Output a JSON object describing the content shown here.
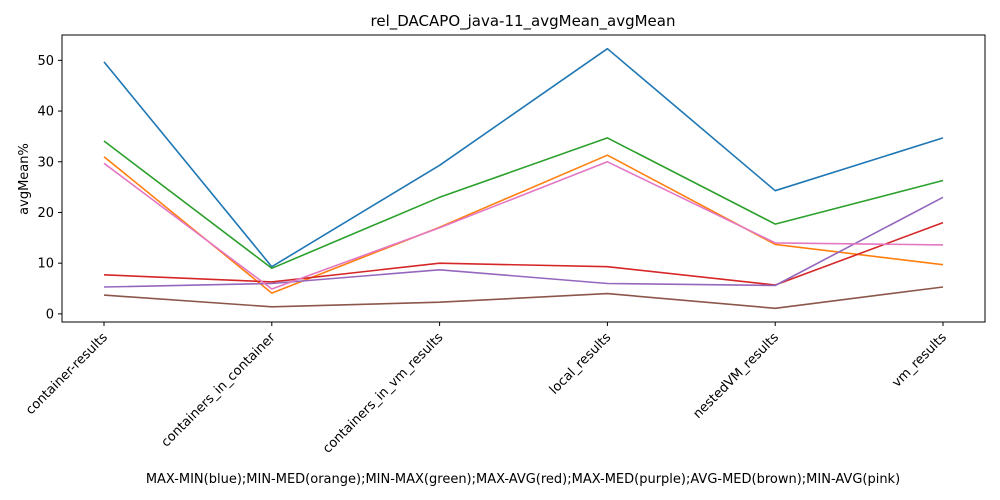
{
  "chart_data": {
    "type": "line",
    "title": "rel_DACAPO_java-11_avgMean_avgMean",
    "xlabel": "MAX-MIN(blue);MIN-MED(orange);MIN-MAX(green);MAX-AVG(red);MAX-MED(purple);AVG-MED(brown);MIN-AVG(pink)",
    "ylabel": "avgMean%",
    "categories": [
      "container-results",
      "containers_in_container",
      "containers_in_vm_results",
      "local_results",
      "nestedVM_results",
      "vm_results"
    ],
    "ylim": [
      -1.6,
      55
    ],
    "yticks": [
      0,
      10,
      20,
      30,
      40,
      50
    ],
    "grid": false,
    "legend": "none",
    "series": [
      {
        "color": "#1f77b4",
        "values": [
          49.7,
          9.3,
          29.3,
          52.3,
          24.3,
          34.7
        ]
      },
      {
        "color": "#ff7f0e",
        "values": [
          31.0,
          4.1,
          17.1,
          31.3,
          13.7,
          9.7
        ]
      },
      {
        "color": "#2ca02c",
        "values": [
          34.1,
          9.0,
          23.0,
          34.7,
          17.7,
          26.3
        ]
      },
      {
        "color": "#d62728",
        "values": [
          7.7,
          6.3,
          10.0,
          9.3,
          5.7,
          18.0
        ]
      },
      {
        "color": "#9467bd",
        "values": [
          5.3,
          6.0,
          8.7,
          6.0,
          5.6,
          23.0
        ]
      },
      {
        "color": "#8c564b",
        "values": [
          3.7,
          1.4,
          2.3,
          4.0,
          1.1,
          5.3
        ]
      },
      {
        "color": "#e377c2",
        "values": [
          29.7,
          4.9,
          17.0,
          30.0,
          14.0,
          13.6
        ]
      }
    ]
  }
}
